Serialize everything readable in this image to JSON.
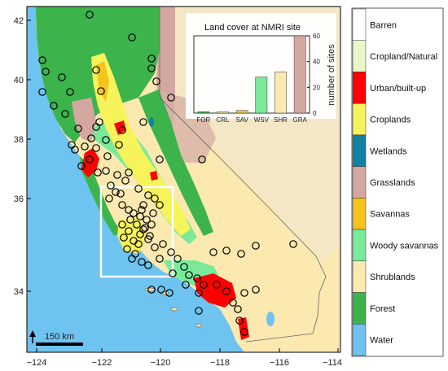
{
  "map": {
    "x_ticks": [
      "−124",
      "−122",
      "−120",
      "−118",
      "−116",
      "−114"
    ],
    "y_ticks": [
      "42",
      "40",
      "38",
      "36",
      "34"
    ],
    "scale_bar_label": "150 km",
    "north_arrow": "arrow-up-icon"
  },
  "inset_chart": {
    "chart_data": {
      "type": "bar",
      "title": "Land cover at NMRI site",
      "categories": [
        "FOR",
        "CRL",
        "SAV",
        "WSV",
        "SHR",
        "GRA"
      ],
      "values": [
        1,
        1,
        2,
        28,
        32,
        60
      ],
      "colors": [
        "#3cb44b",
        "#eeeeaa",
        "#f5c242",
        "#7aea9a",
        "#fbe9b0",
        "#d4a7a1"
      ],
      "ylabel": "number of sites",
      "ylim": [
        0,
        60
      ],
      "y_ticks": [
        "0",
        "20",
        "40",
        "60"
      ]
    }
  },
  "legend": {
    "items": [
      {
        "label": "Barren",
        "color": "#ffffff"
      },
      {
        "label": "Cropland/Natural",
        "color": "#e8f6c8"
      },
      {
        "label": "Urban/built-up",
        "color": "#ff0000"
      },
      {
        "label": "Croplands",
        "color": "#f7f35a"
      },
      {
        "label": "Wetlands",
        "color": "#1282a2"
      },
      {
        "label": "Grasslands",
        "color": "#d4a7a1"
      },
      {
        "label": "Savannas",
        "color": "#f5c31e"
      },
      {
        "label": "Woody savannas",
        "color": "#7aea9a"
      },
      {
        "label": "Shrublands",
        "color": "#fbe9b0"
      },
      {
        "label": "Forest",
        "color": "#3cb44b"
      },
      {
        "label": "Water",
        "color": "#6ec3f0"
      }
    ]
  }
}
